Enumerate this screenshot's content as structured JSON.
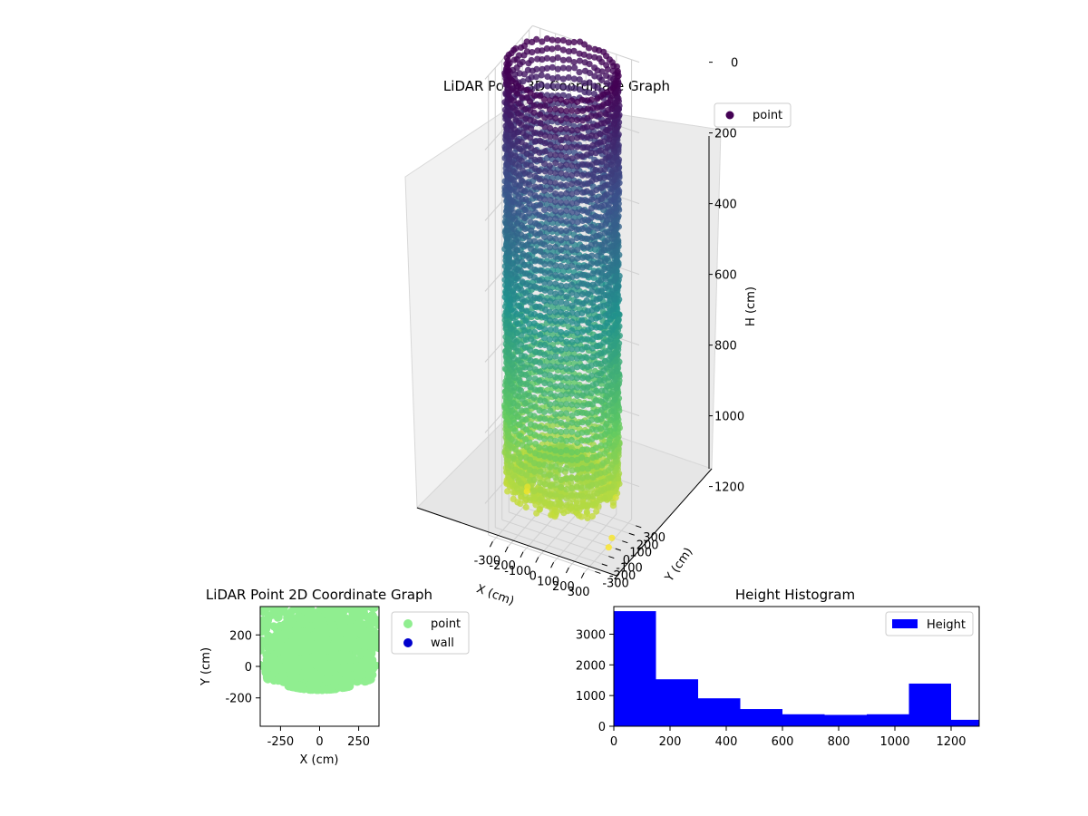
{
  "colors": {
    "viridis": [
      "#440154",
      "#3b528b",
      "#21918c",
      "#5ec962",
      "#fde725"
    ],
    "point2d": "#90ee90",
    "wall": "#0000cd",
    "hist_bar": "#0000ff",
    "pane": "#f2f2f2",
    "grid": "#cfcfcf"
  },
  "chart_data": [
    {
      "type": "scatter",
      "projection": "3d",
      "title": "LiDAR Point 3D Coordinate Graph",
      "xlabel": "X (cm)",
      "ylabel": "Y (cm)",
      "zlabel": "H (cm)",
      "xlim": [
        -350,
        350
      ],
      "ylim": [
        -350,
        350
      ],
      "zlim": [
        1300,
        0
      ],
      "x_ticks": [
        -300,
        -200,
        -100,
        0,
        100,
        200,
        300
      ],
      "y_ticks": [
        -300,
        -200,
        -100,
        0,
        100,
        200,
        300
      ],
      "z_ticks": [
        0,
        200,
        400,
        600,
        800,
        1000,
        1200
      ],
      "z_tick_labels": [
        "0",
        "200",
        "400",
        "600",
        "800",
        "1000",
        "1200"
      ],
      "colormap": "viridis",
      "legend": [
        {
          "label": "point",
          "marker": "circle"
        }
      ],
      "legend_position": "top-right",
      "grid": true,
      "description_shape": "cylindrical wall of radius ~330 cm, height 0–1150 cm, floor bowl at ~1150 cm",
      "outliers": [
        {
          "x": -320,
          "y": 200,
          "h": 1280
        },
        {
          "x": -290,
          "y": 140,
          "h": 1250
        },
        {
          "x": 300,
          "y": 60,
          "h": 1290
        },
        {
          "x": 310,
          "y": -10,
          "h": 1300
        },
        {
          "x": 250,
          "y": 230,
          "h": 1220
        }
      ]
    },
    {
      "type": "scatter",
      "title": "LiDAR Point 2D Coordinate Graph",
      "xlabel": "X (cm)",
      "ylabel": "Y (cm)",
      "xlim": [
        -380,
        380
      ],
      "ylim": [
        -380,
        380
      ],
      "x_ticks": [
        -250,
        0,
        250
      ],
      "y_ticks": [
        -200,
        0,
        200
      ],
      "series": [
        {
          "name": "point",
          "color": "#90ee90"
        },
        {
          "name": "wall",
          "color": "#0000cd"
        }
      ],
      "legend_position": "outside-right",
      "grid": false
    },
    {
      "type": "bar",
      "title": "Height Histogram",
      "xlabel": "",
      "ylabel": "",
      "xlim": [
        0,
        1300
      ],
      "ylim": [
        0,
        3900
      ],
      "x_ticks": [
        0,
        200,
        400,
        600,
        800,
        1000,
        1200
      ],
      "y_ticks": [
        0,
        1000,
        2000,
        3000
      ],
      "bin_edges": [
        0,
        150,
        300,
        450,
        600,
        750,
        900,
        1050,
        1200,
        1350
      ],
      "values": [
        3750,
        1530,
        910,
        560,
        390,
        370,
        390,
        1390,
        210
      ],
      "series": [
        {
          "name": "Height",
          "color": "#0000ff"
        }
      ],
      "legend_position": "top-right",
      "grid": false
    }
  ]
}
